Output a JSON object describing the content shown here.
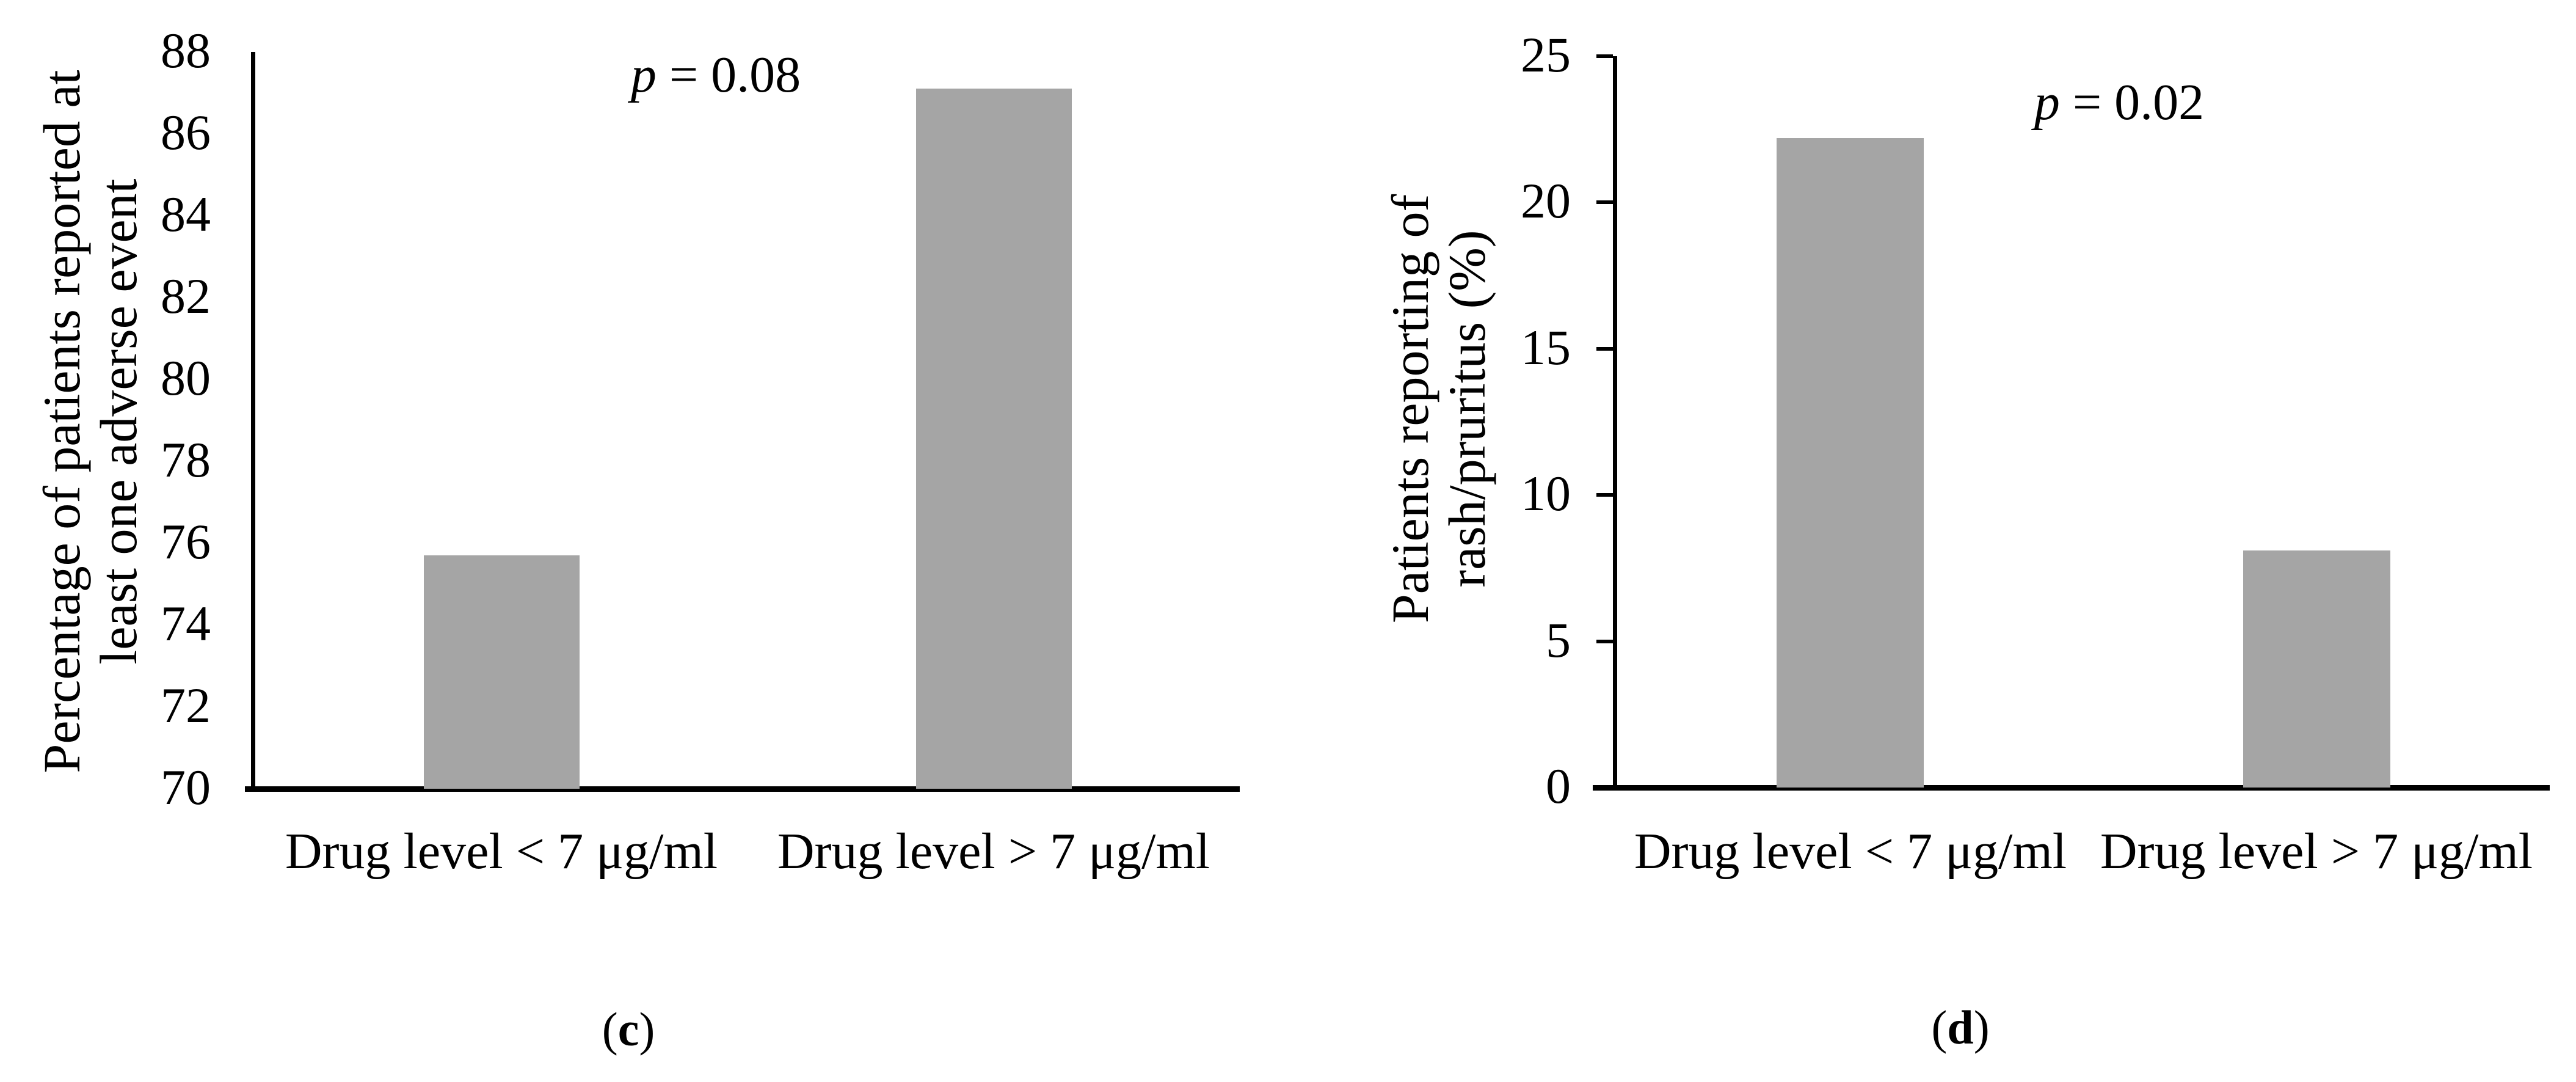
{
  "page": {
    "background": "#ffffff"
  },
  "chart_data": [
    {
      "id": "c",
      "type": "bar",
      "title": "",
      "ylabel_lines": [
        "Percentage of patients reported at",
        "least one adverse event"
      ],
      "xlabel": "",
      "ylim": [
        70,
        88
      ],
      "yticks": [
        70,
        72,
        74,
        76,
        78,
        80,
        82,
        84,
        86,
        88
      ],
      "categories": [
        "Drug level < 7 μg/ml",
        "Drug level > 7 μg/ml"
      ],
      "values": [
        75.7,
        87.1
      ],
      "bar_color": "#a5a5a5",
      "grid": false,
      "legend": null,
      "y_tick_marks_visible": false,
      "annotation": {
        "symbol": "p",
        "text": "= 0.08"
      },
      "panel_label": {
        "open": "(",
        "letter": "c",
        "close": ")"
      }
    },
    {
      "id": "d",
      "type": "bar",
      "title": "",
      "ylabel_lines": [
        "Patients reporting of",
        "rash/pruritus (%)"
      ],
      "xlabel": "",
      "ylim": [
        0,
        25
      ],
      "yticks": [
        0,
        5,
        10,
        15,
        20,
        25
      ],
      "categories": [
        "Drug level < 7 μg/ml",
        "Drug level > 7 μg/ml"
      ],
      "values": [
        22.2,
        8.1
      ],
      "bar_color": "#a5a5a5",
      "grid": false,
      "legend": null,
      "y_tick_marks_visible": true,
      "annotation": {
        "symbol": "p",
        "text": "= 0.02"
      },
      "panel_label": {
        "open": "(",
        "letter": "d",
        "close": ")"
      }
    }
  ]
}
